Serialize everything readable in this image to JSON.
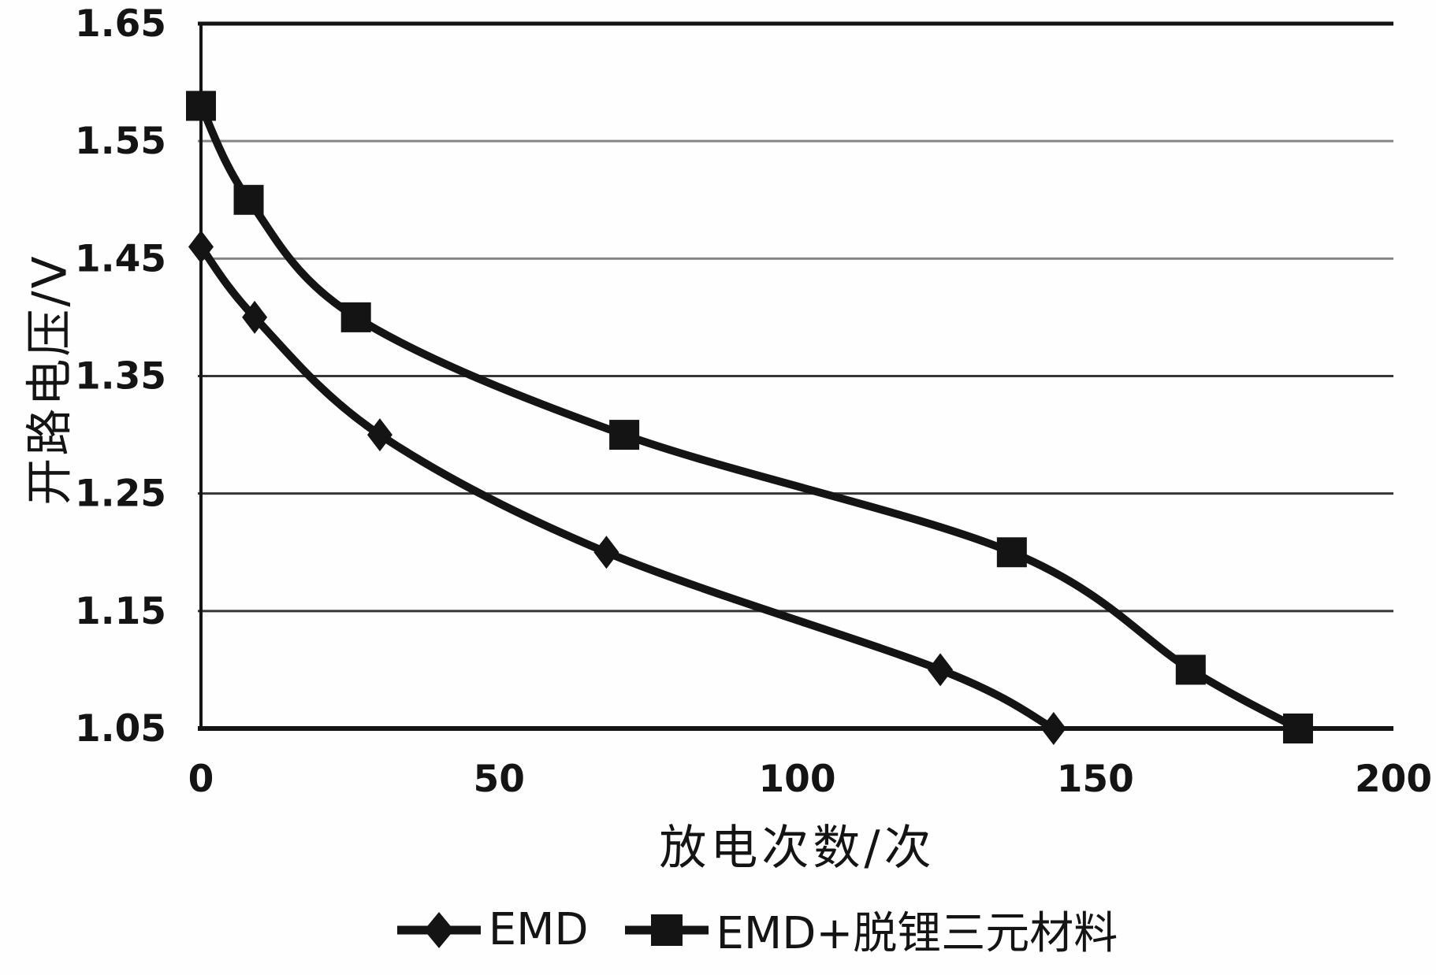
{
  "chart_data": {
    "type": "line",
    "title": "",
    "xlabel": "放电次数/次",
    "ylabel": "开路电压/V",
    "xlim": [
      0,
      200
    ],
    "ylim": [
      1.05,
      1.65
    ],
    "x_ticks": [
      0,
      50,
      100,
      150,
      200
    ],
    "y_ticks": [
      1.05,
      1.15,
      1.25,
      1.35,
      1.45,
      1.55,
      1.65
    ],
    "grid": "horizontal",
    "legend_position": "bottom-center",
    "axis_color": "#141414",
    "grid_color_light": "#858585",
    "grid_color_dark": "#353535",
    "series_color": "#141414",
    "series": [
      {
        "name": "EMD",
        "marker": "diamond",
        "color": "#141414",
        "points": [
          [
            0,
            1.46
          ],
          [
            9,
            1.4
          ],
          [
            30,
            1.3
          ],
          [
            68,
            1.2
          ],
          [
            124,
            1.1
          ],
          [
            143,
            1.05
          ]
        ]
      },
      {
        "name": "EMD+脱锂三元材料",
        "marker": "square",
        "color": "#141414",
        "points": [
          [
            0,
            1.58
          ],
          [
            8,
            1.5
          ],
          [
            26,
            1.4
          ],
          [
            71,
            1.3
          ],
          [
            136,
            1.2
          ],
          [
            166,
            1.1
          ],
          [
            184,
            1.05
          ]
        ]
      }
    ]
  },
  "legend": {
    "items": [
      {
        "label": "EMD",
        "marker": "diamond"
      },
      {
        "label": "EMD+脱锂三元材料",
        "marker": "square"
      }
    ]
  }
}
